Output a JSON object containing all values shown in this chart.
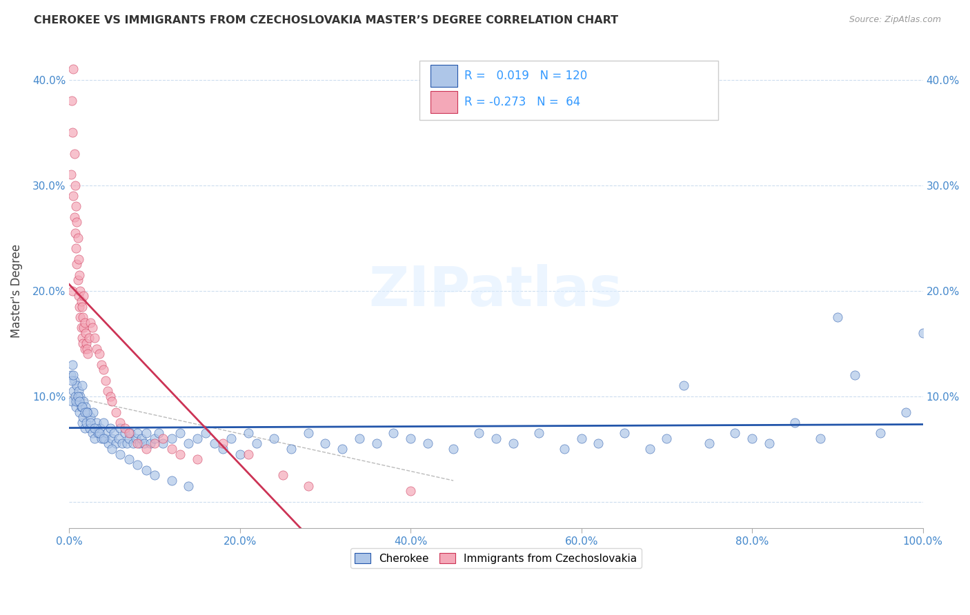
{
  "title": "CHEROKEE VS IMMIGRANTS FROM CZECHOSLOVAKIA MASTER’S DEGREE CORRELATION CHART",
  "source": "Source: ZipAtlas.com",
  "ylabel": "Master's Degree",
  "xlim": [
    0.0,
    1.0
  ],
  "ylim": [
    -0.025,
    0.425
  ],
  "xticks": [
    0.0,
    0.2,
    0.4,
    0.6,
    0.8,
    1.0
  ],
  "xticklabels": [
    "0.0%",
    "20.0%",
    "40.0%",
    "60.0%",
    "80.0%",
    "100.0%"
  ],
  "yticks": [
    0.0,
    0.1,
    0.2,
    0.3,
    0.4
  ],
  "yticklabels": [
    "",
    "10.0%",
    "20.0%",
    "30.0%",
    "40.0%"
  ],
  "legend_r_blue": "0.019",
  "legend_n_blue": "120",
  "legend_r_pink": "-0.273",
  "legend_n_pink": "64",
  "blue_color": "#aec6e8",
  "pink_color": "#f4a8b8",
  "trend_blue_color": "#2255aa",
  "trend_pink_color": "#cc3355",
  "trend_gray_color": "#bbbbbb",
  "watermark": "ZIPatlas",
  "blue_scatter_x": [
    0.002,
    0.003,
    0.004,
    0.005,
    0.006,
    0.007,
    0.008,
    0.009,
    0.01,
    0.011,
    0.012,
    0.013,
    0.014,
    0.015,
    0.015,
    0.016,
    0.017,
    0.018,
    0.019,
    0.02,
    0.022,
    0.024,
    0.025,
    0.027,
    0.028,
    0.03,
    0.032,
    0.034,
    0.036,
    0.038,
    0.04,
    0.042,
    0.044,
    0.046,
    0.048,
    0.05,
    0.052,
    0.055,
    0.058,
    0.06,
    0.062,
    0.065,
    0.068,
    0.07,
    0.072,
    0.075,
    0.078,
    0.08,
    0.082,
    0.085,
    0.088,
    0.09,
    0.095,
    0.1,
    0.105,
    0.11,
    0.12,
    0.13,
    0.14,
    0.15,
    0.16,
    0.17,
    0.18,
    0.19,
    0.2,
    0.21,
    0.22,
    0.24,
    0.26,
    0.28,
    0.3,
    0.32,
    0.34,
    0.36,
    0.38,
    0.4,
    0.42,
    0.45,
    0.48,
    0.5,
    0.52,
    0.55,
    0.58,
    0.6,
    0.62,
    0.65,
    0.68,
    0.7,
    0.72,
    0.75,
    0.78,
    0.8,
    0.82,
    0.85,
    0.88,
    0.9,
    0.92,
    0.95,
    0.98,
    1.0,
    0.003,
    0.005,
    0.008,
    0.01,
    0.012,
    0.015,
    0.018,
    0.021,
    0.025,
    0.03,
    0.035,
    0.04,
    0.05,
    0.06,
    0.07,
    0.08,
    0.09,
    0.1,
    0.12,
    0.14
  ],
  "blue_scatter_y": [
    0.12,
    0.095,
    0.13,
    0.105,
    0.115,
    0.1,
    0.09,
    0.11,
    0.095,
    0.105,
    0.085,
    0.1,
    0.09,
    0.075,
    0.11,
    0.08,
    0.095,
    0.07,
    0.09,
    0.075,
    0.085,
    0.07,
    0.08,
    0.065,
    0.085,
    0.06,
    0.075,
    0.065,
    0.07,
    0.06,
    0.075,
    0.06,
    0.065,
    0.055,
    0.07,
    0.06,
    0.065,
    0.055,
    0.06,
    0.07,
    0.055,
    0.065,
    0.055,
    0.06,
    0.065,
    0.055,
    0.06,
    0.065,
    0.055,
    0.06,
    0.055,
    0.065,
    0.055,
    0.06,
    0.065,
    0.055,
    0.06,
    0.065,
    0.055,
    0.06,
    0.065,
    0.055,
    0.05,
    0.06,
    0.045,
    0.065,
    0.055,
    0.06,
    0.05,
    0.065,
    0.055,
    0.05,
    0.06,
    0.055,
    0.065,
    0.06,
    0.055,
    0.05,
    0.065,
    0.06,
    0.055,
    0.065,
    0.05,
    0.06,
    0.055,
    0.065,
    0.05,
    0.06,
    0.11,
    0.055,
    0.065,
    0.06,
    0.055,
    0.075,
    0.06,
    0.175,
    0.12,
    0.065,
    0.085,
    0.16,
    0.115,
    0.12,
    0.095,
    0.1,
    0.095,
    0.09,
    0.085,
    0.085,
    0.075,
    0.07,
    0.065,
    0.06,
    0.05,
    0.045,
    0.04,
    0.035,
    0.03,
    0.025,
    0.02,
    0.015
  ],
  "pink_scatter_x": [
    0.002,
    0.003,
    0.004,
    0.004,
    0.005,
    0.005,
    0.006,
    0.006,
    0.007,
    0.007,
    0.008,
    0.008,
    0.009,
    0.009,
    0.01,
    0.01,
    0.011,
    0.011,
    0.012,
    0.012,
    0.013,
    0.013,
    0.014,
    0.014,
    0.015,
    0.015,
    0.016,
    0.016,
    0.017,
    0.017,
    0.018,
    0.018,
    0.019,
    0.02,
    0.021,
    0.022,
    0.023,
    0.025,
    0.027,
    0.03,
    0.032,
    0.035,
    0.038,
    0.04,
    0.043,
    0.045,
    0.048,
    0.05,
    0.055,
    0.06,
    0.065,
    0.07,
    0.08,
    0.09,
    0.1,
    0.11,
    0.12,
    0.13,
    0.15,
    0.18,
    0.21,
    0.25,
    0.28,
    0.4
  ],
  "pink_scatter_y": [
    0.31,
    0.38,
    0.2,
    0.35,
    0.29,
    0.41,
    0.27,
    0.33,
    0.255,
    0.3,
    0.24,
    0.28,
    0.225,
    0.265,
    0.21,
    0.25,
    0.195,
    0.23,
    0.185,
    0.215,
    0.175,
    0.2,
    0.165,
    0.19,
    0.155,
    0.185,
    0.15,
    0.175,
    0.195,
    0.165,
    0.145,
    0.17,
    0.16,
    0.15,
    0.145,
    0.14,
    0.155,
    0.17,
    0.165,
    0.155,
    0.145,
    0.14,
    0.13,
    0.125,
    0.115,
    0.105,
    0.1,
    0.095,
    0.085,
    0.075,
    0.07,
    0.065,
    0.055,
    0.05,
    0.055,
    0.06,
    0.05,
    0.045,
    0.04,
    0.055,
    0.045,
    0.025,
    0.015,
    0.01
  ]
}
